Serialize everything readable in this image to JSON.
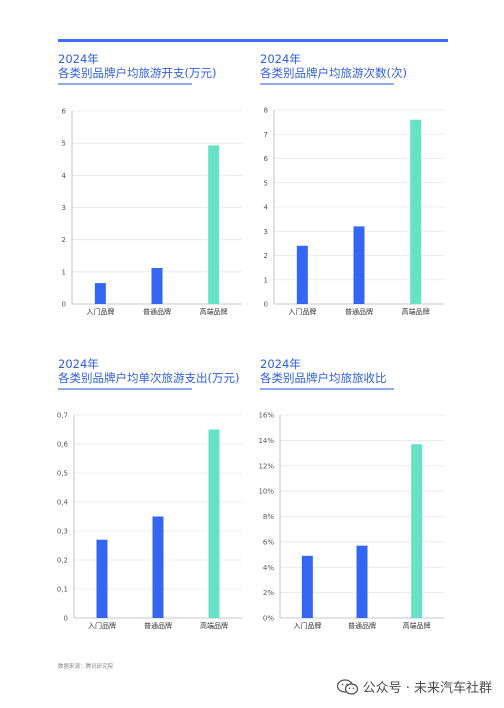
{
  "source_note": "数据来源：腾讯研究院",
  "watermark": {
    "icon": "wechat-icon",
    "text": "公众号 · 未来汽车社群"
  },
  "colors": {
    "bar_blue": "#3366f2",
    "bar_green": "#66e3c4",
    "accent": "#2f5fe0",
    "grid": "#e4e6ea",
    "axis": "#b8b8b8"
  },
  "chart_data": [
    {
      "type": "bar",
      "year": "2024年",
      "title": "各类别品牌户均旅游开支(万元)",
      "categories": [
        "入门品牌",
        "普通品牌",
        "高端品牌"
      ],
      "values": [
        0.65,
        1.12,
        4.93
      ],
      "ylim": [
        0,
        6
      ],
      "yticks": [
        0,
        1,
        2,
        3,
        4,
        5,
        6
      ],
      "ytick_labels": [
        "0",
        "1",
        "2",
        "3",
        "4",
        "5",
        "6"
      ],
      "bar_colors": [
        "#3366f2",
        "#3366f2",
        "#66e3c4"
      ],
      "grid": true
    },
    {
      "type": "bar",
      "year": "2024年",
      "title": "各类别品牌户均旅游次数(次)",
      "categories": [
        "入门品牌",
        "普通品牌",
        "高端品牌"
      ],
      "values": [
        2.4,
        3.2,
        7.6
      ],
      "ylim": [
        0,
        8
      ],
      "yticks": [
        0,
        1,
        2,
        3,
        4,
        5,
        6,
        7,
        8
      ],
      "ytick_labels": [
        "0",
        "1",
        "2",
        "3",
        "4",
        "5",
        "6",
        "7",
        "8"
      ],
      "bar_colors": [
        "#3366f2",
        "#3366f2",
        "#66e3c4"
      ],
      "grid": true
    },
    {
      "type": "bar",
      "year": "2024年",
      "title": "各类别品牌户均单次旅游支出(万元)",
      "categories": [
        "入门品牌",
        "普通品牌",
        "高端品牌"
      ],
      "values": [
        0.27,
        0.35,
        0.65
      ],
      "ylim": [
        0,
        0.7
      ],
      "yticks": [
        0,
        0.1,
        0.2,
        0.3,
        0.4,
        0.5,
        0.6,
        0.7
      ],
      "ytick_labels": [
        "0",
        "0,1",
        "0,2",
        "0,3",
        "0,4",
        "0,5",
        "0,6",
        "0,7"
      ],
      "bar_colors": [
        "#3366f2",
        "#3366f2",
        "#66e3c4"
      ],
      "grid": true
    },
    {
      "type": "bar",
      "year": "2024年",
      "title": "各类别品牌户均旅旅收比",
      "categories": [
        "入门品牌",
        "普通品牌",
        "高端品牌"
      ],
      "values": [
        4.9,
        5.7,
        13.7
      ],
      "ylim": [
        0,
        16
      ],
      "yticks": [
        0,
        2,
        4,
        6,
        8,
        10,
        12,
        14,
        16
      ],
      "ytick_labels": [
        "0%",
        "2%",
        "4%",
        "6%",
        "8%",
        "10%",
        "12%",
        "14%",
        "16%"
      ],
      "bar_colors": [
        "#3366f2",
        "#3366f2",
        "#66e3c4"
      ],
      "grid": true
    }
  ]
}
